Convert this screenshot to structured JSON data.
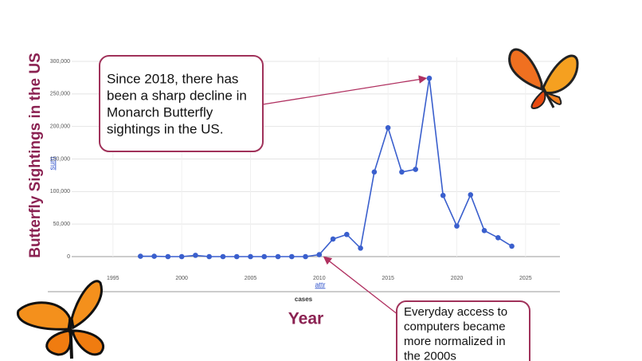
{
  "chart_data": {
    "type": "line",
    "y_label": "Butterfly Sightings in the US",
    "y_field": "sum",
    "x_field": "attr",
    "x_caption": "cases",
    "x_label": "Year",
    "x": [
      1997,
      1998,
      1999,
      2000,
      2001,
      2002,
      2003,
      2004,
      2005,
      2006,
      2007,
      2008,
      2009,
      2010,
      2011,
      2012,
      2013,
      2014,
      2015,
      2016,
      2017,
      2018,
      2019,
      2020,
      2021,
      2022,
      2023,
      2024
    ],
    "series": [
      {
        "color": "#3a5fcd",
        "values": [
          500,
          500,
          0,
          0,
          2000,
          0,
          0,
          0,
          0,
          0,
          0,
          0,
          0,
          3000,
          27000,
          34000,
          13000,
          130000,
          198000,
          130000,
          134000,
          274000,
          94000,
          47000,
          95000,
          40000,
          29000,
          16000
        ]
      }
    ],
    "xlim": [
      1992,
      2027.5
    ],
    "xticks": [
      1995,
      2000,
      2005,
      2010,
      2015,
      2020,
      2025
    ],
    "ylim": [
      0,
      300000
    ],
    "yticks": [
      0,
      {
        "value": 50000,
        "label": "50,000"
      },
      {
        "value": 100000,
        "label": "100,000"
      },
      {
        "value": 150000,
        "label": "150,000"
      },
      {
        "value": 200000,
        "label": "200,000"
      },
      {
        "value": 250000,
        "label": "250,000"
      },
      {
        "value": 300000,
        "label": "300,000"
      }
    ],
    "grid": true,
    "annotations": [
      {
        "lines": [
          "Since 2018, there has",
          "been a sharp decline in",
          "Monarch Butterfly",
          "sightings in the US."
        ],
        "x": 2018
      },
      {
        "lines": [
          "Everyday access to",
          "computers became",
          "more normalized in",
          "the 2000s"
        ],
        "x": 2010
      }
    ]
  }
}
